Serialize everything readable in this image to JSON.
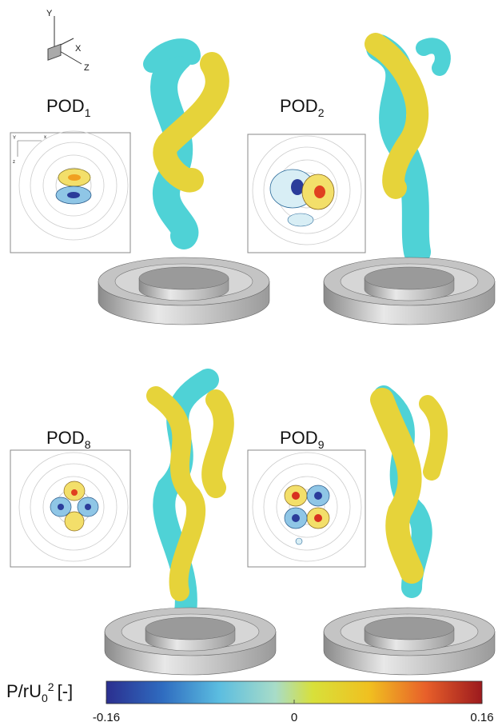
{
  "axes_triad": {
    "y": "Y",
    "x": "X",
    "z": "Z"
  },
  "inset_axes": {
    "y": "Y",
    "x": "x",
    "z": "z"
  },
  "panels": [
    {
      "label": "POD",
      "subscript": "1"
    },
    {
      "label": "POD",
      "subscript": "2"
    },
    {
      "label": "POD",
      "subscript": "8"
    },
    {
      "label": "POD",
      "subscript": "9"
    }
  ],
  "colorbar": {
    "label": "P/rU",
    "subscript": "0",
    "superscript": "2",
    "unit": "[-]",
    "lim": [
      -0.16,
      0.16
    ],
    "ticks": [
      -0.16,
      0,
      0.16
    ]
  }
}
